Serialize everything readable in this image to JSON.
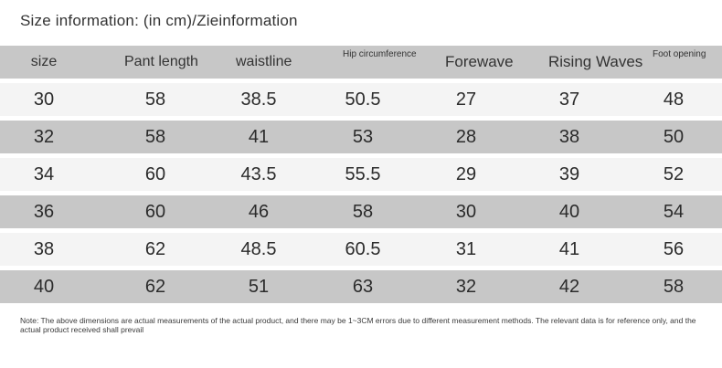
{
  "title": "Size information: (in cm)/Zieinformation",
  "headers": [
    "size",
    "Pant length",
    "waistline",
    "Hip circumference",
    "Forewave",
    "Rising Waves",
    "Foot opening"
  ],
  "rows": [
    [
      "30",
      "58",
      "38.5",
      "50.5",
      "27",
      "37",
      "48"
    ],
    [
      "32",
      "58",
      "41",
      "53",
      "28",
      "38",
      "50"
    ],
    [
      "34",
      "60",
      "43.5",
      "55.5",
      "29",
      "39",
      "52"
    ],
    [
      "36",
      "60",
      "46",
      "58",
      "30",
      "40",
      "54"
    ],
    [
      "38",
      "62",
      "48.5",
      "60.5",
      "31",
      "41",
      "56"
    ],
    [
      "40",
      "62",
      "51",
      "63",
      "32",
      "42",
      "58"
    ]
  ],
  "note": "Note: The above dimensions are actual measurements of the actual product, and there may be 1~3CM errors due to different measurement methods. The relevant data is for reference only, and the actual product received shall prevail",
  "colors": {
    "header_row": "#c7c7c7",
    "light_row": "#f4f4f4",
    "dark_row": "#c7c7c7"
  }
}
